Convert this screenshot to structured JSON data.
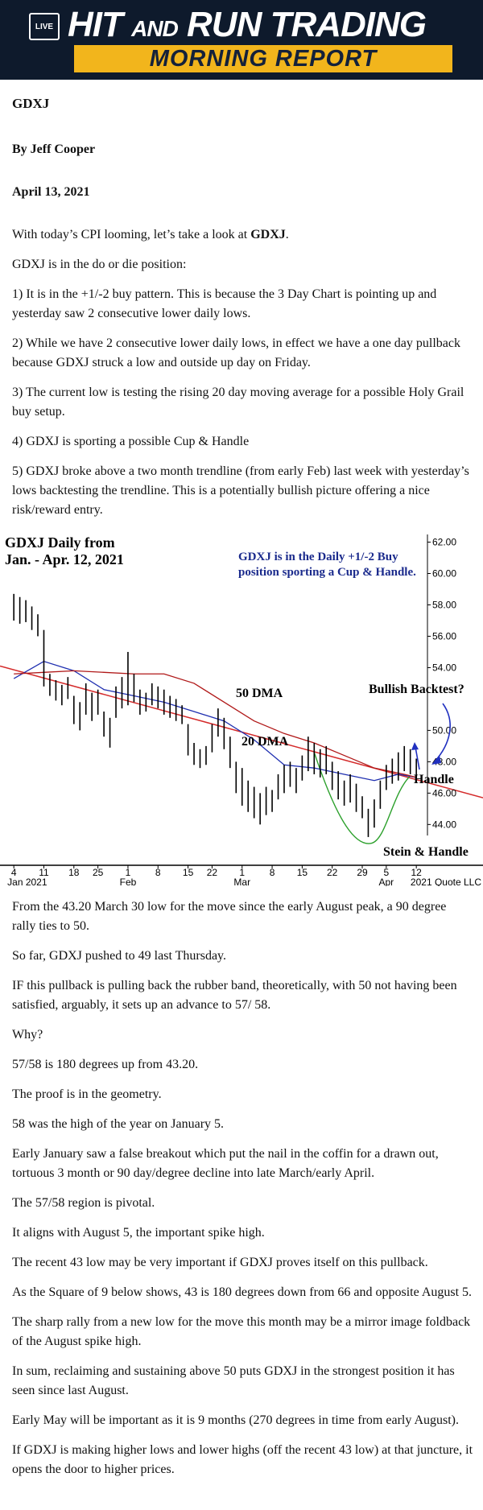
{
  "header": {
    "logo": "LIVE",
    "title_a": "HIT",
    "title_b": "AND",
    "title_c": "RUN TRADING",
    "subtitle": "MORNING REPORT"
  },
  "article": {
    "title": "GDXJ",
    "byline": "By Jeff Cooper",
    "date": "April 13, 2021",
    "intro": {
      "text": "With today’s CPI looming, let’s take a look at ",
      "bold": "GDXJ",
      "end": "."
    },
    "paragraphs_before": [
      "GDXJ is in the do or die position:",
      "1) It is in the +1/-2 buy pattern. This is because the 3 Day Chart is pointing up and yesterday saw 2 consecutive lower daily lows.",
      "2) While we have 2 consecutive lower daily lows, in effect we have a one day pullback because GDXJ struck a low and outside up day on Friday.",
      "3) The current low is testing the rising 20 day moving average for a possible Holy Grail buy setup.",
      "4) GDXJ is sporting a possible Cup & Handle",
      "5) GDXJ broke above a two month trendline (from early Feb) last week with yesterday’s lows backtesting the trendline. This is a potentially bullish picture offering a nice risk/reward entry."
    ],
    "paragraphs_after": [
      "From the 43.20 March 30 low for the move since the early August peak, a 90 degree rally ties to 50.",
      "So far, GDXJ pushed to 49 last Thursday.",
      "IF this pullback is pulling back the rubber band, theoretically, with 50 not having been satisfied, arguably, it sets up an advance to 57/ 58.",
      "Why?",
      "57/58 is 180 degrees up from 43.20.",
      "The proof is in the geometry.",
      "58 was the high of the year on January 5.",
      "Early January saw a false breakout which put the nail in the coffin for a drawn out, tortuous 3 month or 90 day/degree decline into late March/early April.",
      "The 57/58 region is pivotal.",
      "It aligns with August 5, the important spike high.",
      "The recent 43 low may be very important if GDXJ proves itself on this pullback.",
      "As the Square of 9 below shows, 43 is 180 degrees down from 66 and opposite August 5.",
      "The sharp rally from a new low for the move this month may be a mirror image foldback of the August spike high.",
      "In sum, reclaiming and sustaining above 50 puts GDXJ in the strongest position it has seen since last August.",
      "Early May will be important as it is 9 months (270 degrees in time from early August).",
      "If GDXJ is making higher lows and lower highs (off the recent 43 low) at that juncture, it opens the door to higher prices."
    ]
  },
  "chart_data": {
    "type": "ohlc",
    "title_lines": [
      "GDXJ Daily from",
      "Jan. - Apr. 12, 2021"
    ],
    "annotation_lines": [
      "GDXJ is in the Daily +1/-2 Buy",
      "position sporting a Cup & Handle."
    ],
    "labels": {
      "ma50": "50 DMA",
      "ma20": "20 DMA",
      "backtest": "Bullish Backtest?",
      "handle": "Handle",
      "cup": "Stein & Handle",
      "credit": "2021 Quote LLC"
    },
    "bar_color": "#000000",
    "high": [
      58.7,
      58.5,
      58.3,
      57.9,
      57.4,
      56.4,
      53.6,
      53.2,
      52.9,
      53.4,
      52.2,
      51.8,
      53.0,
      52.4,
      52.6,
      51.2,
      50.8,
      52.8,
      53.4,
      55.0,
      53.6,
      52.6,
      52.4,
      53.0,
      52.8,
      52.6,
      52.2,
      52.0,
      51.6,
      50.4,
      49.2,
      48.8,
      49.0,
      50.4,
      51.4,
      50.8,
      49.6,
      48.0,
      47.6,
      46.8,
      46.4,
      46.0,
      46.4,
      46.2,
      47.2,
      47.8,
      48.0,
      47.6,
      48.4,
      49.6,
      49.2,
      48.8,
      49.0,
      48.0,
      47.4,
      46.8,
      47.2,
      46.6,
      45.8,
      45.0,
      45.6,
      46.8,
      47.8,
      48.2,
      48.6,
      49.0,
      48.8,
      48.2
    ],
    "low": [
      57.0,
      56.8,
      56.9,
      56.4,
      56.0,
      52.8,
      52.2,
      51.9,
      51.6,
      52.0,
      50.4,
      50.0,
      51.0,
      50.6,
      51.0,
      49.6,
      48.9,
      50.8,
      51.4,
      51.6,
      51.8,
      51.0,
      51.2,
      51.6,
      51.4,
      51.0,
      50.8,
      50.6,
      50.4,
      48.4,
      47.8,
      47.6,
      47.8,
      48.6,
      49.6,
      48.8,
      47.6,
      46.0,
      45.2,
      44.8,
      44.4,
      44.0,
      44.6,
      44.8,
      45.6,
      46.0,
      46.4,
      46.0,
      46.8,
      47.4,
      47.2,
      47.0,
      47.2,
      46.2,
      45.6,
      45.2,
      45.4,
      44.8,
      44.4,
      43.2,
      43.8,
      45.0,
      46.2,
      46.6,
      46.8,
      47.4,
      47.2,
      46.8
    ],
    "series": [
      {
        "name": "20 DMA",
        "color": "#1f2fb0",
        "x": [
          0,
          5,
          10,
          15,
          20,
          25,
          30,
          35,
          40,
          45,
          50,
          55,
          60,
          64,
          67
        ],
        "values": [
          53.3,
          54.4,
          53.8,
          52.6,
          52.2,
          51.8,
          51.2,
          50.6,
          49.4,
          47.8,
          47.6,
          47.2,
          46.8,
          47.2,
          47.0
        ]
      },
      {
        "name": "50 DMA",
        "color": "#b01818",
        "x": [
          0,
          5,
          10,
          15,
          20,
          25,
          30,
          35,
          40,
          45,
          50,
          55,
          60,
          65,
          67
        ],
        "values": [
          53.6,
          53.7,
          53.8,
          53.7,
          53.6,
          53.6,
          53.0,
          51.8,
          50.6,
          49.8,
          49.2,
          48.4,
          47.6,
          47.2,
          47.0
        ]
      }
    ],
    "xlim": [
      -2.3,
      78.1
    ],
    "ylim": [
      41.4,
      62.9
    ],
    "yticks": [
      {
        "value": 44,
        "label": "44.00"
      },
      {
        "value": 46,
        "label": "46.00"
      },
      {
        "value": 48,
        "label": "48.00"
      },
      {
        "value": 50,
        "label": "50.00"
      },
      {
        "value": 54,
        "label": "54.00"
      },
      {
        "value": 56,
        "label": "56.00"
      },
      {
        "value": 58,
        "label": "58.00"
      },
      {
        "value": 60,
        "label": "60.00"
      },
      {
        "value": 62,
        "label": "62.00"
      }
    ],
    "xticks": [
      {
        "value": 0,
        "label": "4"
      },
      {
        "value": 5,
        "label": "11"
      },
      {
        "value": 10,
        "label": "18"
      },
      {
        "value": 14,
        "label": "25"
      },
      {
        "value": 19,
        "label": "1"
      },
      {
        "value": 24,
        "label": "8"
      },
      {
        "value": 29,
        "label": "15"
      },
      {
        "value": 33,
        "label": "22"
      },
      {
        "value": 38,
        "label": "1"
      },
      {
        "value": 43,
        "label": "8"
      },
      {
        "value": 48,
        "label": "15"
      },
      {
        "value": 53,
        "label": "22"
      },
      {
        "value": 58,
        "label": "29"
      },
      {
        "value": 62,
        "label": "5"
      },
      {
        "value": 67,
        "label": "12"
      }
    ],
    "month_ticks": [
      {
        "value": 0,
        "label": "Jan 2021"
      },
      {
        "value": 19,
        "label": "Feb"
      },
      {
        "value": 38,
        "label": "Mar"
      },
      {
        "value": 62,
        "label": "Apr"
      }
    ]
  }
}
